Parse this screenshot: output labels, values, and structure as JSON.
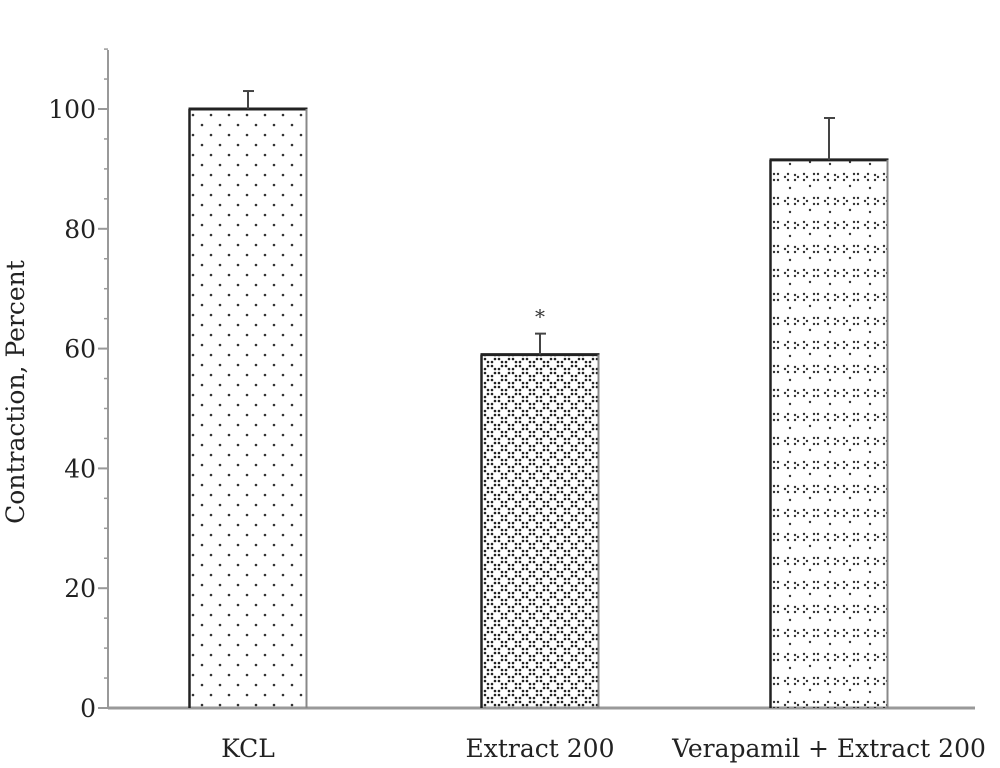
{
  "chart_data": {
    "type": "bar",
    "title": "",
    "xlabel": "",
    "ylabel": "Contraction, Percent",
    "ylim": [
      0,
      110
    ],
    "yticks": [
      0,
      20,
      40,
      60,
      80,
      100
    ],
    "grid": false,
    "categories": [
      "KCL",
      "Extract 200",
      "Verapamil + Extract 200"
    ],
    "values": [
      100,
      59,
      91.5
    ],
    "errors": [
      3,
      3.5,
      7
    ],
    "annotations": [
      "",
      "*",
      ""
    ],
    "patterns": [
      "dots",
      "crosshatch-dots",
      "glyph-dots"
    ],
    "colors": {
      "bar_fill": "#ffffff",
      "bar_edge": "#222222",
      "pattern": "#333333",
      "axis": "#999999"
    }
  }
}
